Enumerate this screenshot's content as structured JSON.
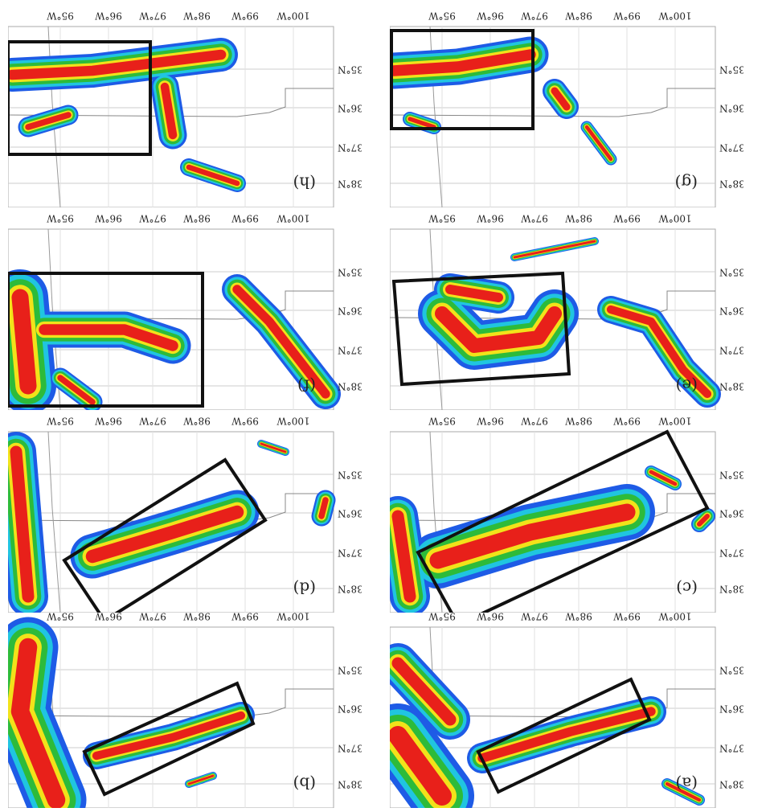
{
  "figure": {
    "panels": [
      {
        "label": "(a)"
      },
      {
        "label": "(b)"
      },
      {
        "label": "(c)"
      },
      {
        "label": "(d)"
      },
      {
        "label": "(e)"
      },
      {
        "label": "(f)"
      },
      {
        "label": "(g)"
      },
      {
        "label": "(h)"
      }
    ],
    "lat_labels": [
      "38°N",
      "37°N",
      "36°N",
      "35°N"
    ],
    "lon_labels": [
      "100°W",
      "99°W",
      "98°W",
      "97°W",
      "96°W",
      "95°W"
    ]
  }
}
